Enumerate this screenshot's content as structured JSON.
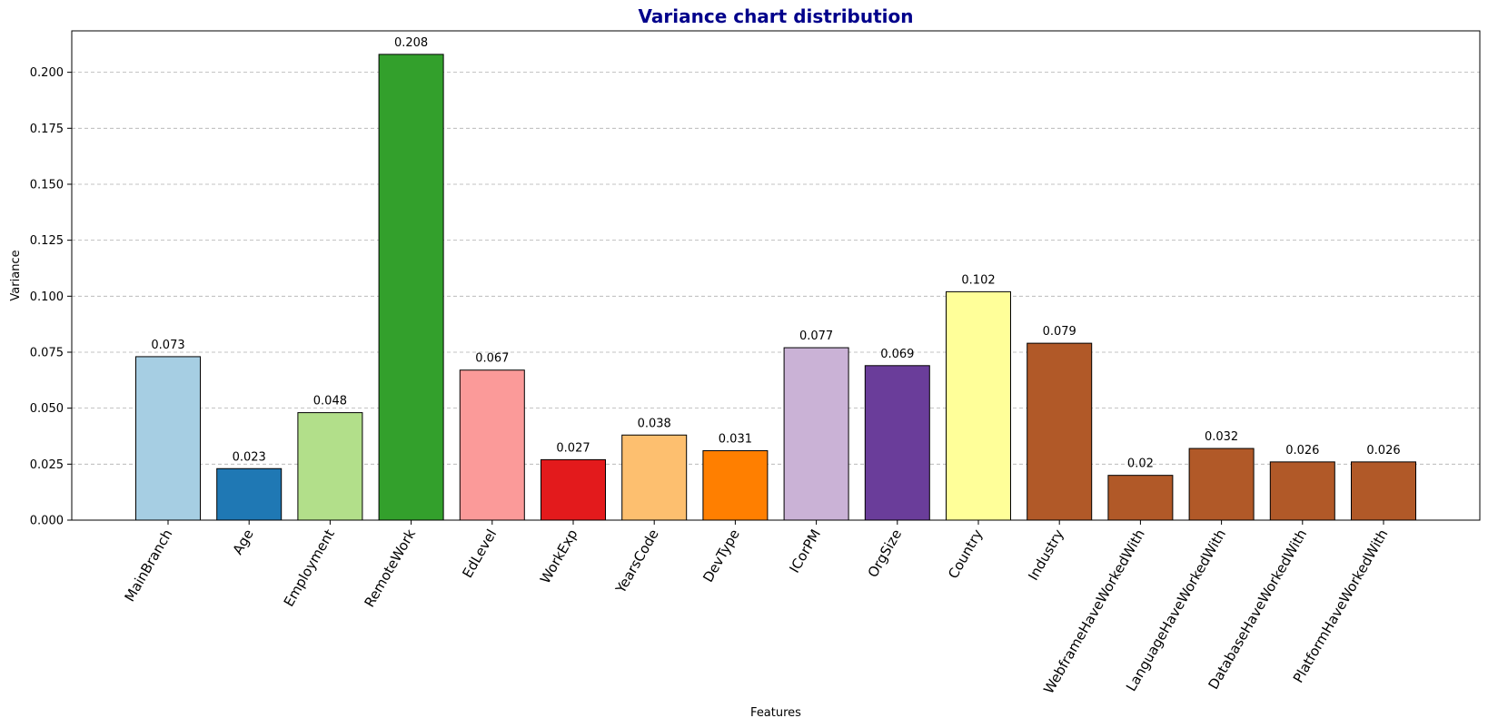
{
  "chart_data": {
    "type": "bar",
    "title": "Variance chart distribution",
    "title_color": "#00008b",
    "xlabel": "Features",
    "ylabel": "Variance",
    "ylim": [
      0,
      0.2185
    ],
    "yticks": [
      "0.000",
      "0.025",
      "0.050",
      "0.075",
      "0.100",
      "0.125",
      "0.150",
      "0.175",
      "0.200"
    ],
    "grid": "horizontal dashed",
    "categories": [
      "MainBranch",
      "Age",
      "Employment",
      "RemoteWork",
      "EdLevel",
      "WorkExp",
      "YearsCode",
      "DevType",
      "ICorPM",
      "OrgSize",
      "Country",
      "Industry",
      "WebframeHaveWorkedWith",
      "LanguageHaveWorkedWith",
      "DatabaseHaveWorkedWith",
      "PlatformHaveWorkedWith"
    ],
    "values": [
      0.073,
      0.023,
      0.048,
      0.208,
      0.067,
      0.027,
      0.038,
      0.031,
      0.077,
      0.069,
      0.102,
      0.079,
      0.02,
      0.032,
      0.026,
      0.026
    ],
    "value_labels": [
      "0.073",
      "0.023",
      "0.048",
      "0.208",
      "0.067",
      "0.027",
      "0.038",
      "0.031",
      "0.077",
      "0.069",
      "0.102",
      "0.079",
      "0.02",
      "0.032",
      "0.026",
      "0.026"
    ],
    "colors": [
      "#a6cee3",
      "#1f78b4",
      "#b2df8a",
      "#33a02c",
      "#fb9a99",
      "#e31a1c",
      "#fdbf6f",
      "#ff7f00",
      "#cab2d6",
      "#6a3d9a",
      "#ffff99",
      "#b15928",
      "#b15928",
      "#b15928",
      "#b15928",
      "#b15928"
    ]
  }
}
